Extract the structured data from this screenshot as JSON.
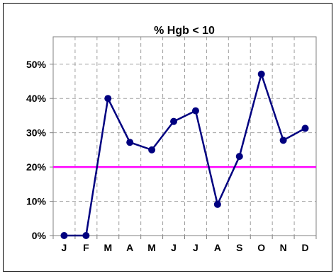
{
  "chart_data": {
    "type": "line",
    "title": "% Hgb < 10",
    "categories": [
      "J",
      "F",
      "M",
      "A",
      "M",
      "J",
      "J",
      "A",
      "S",
      "O",
      "N",
      "D"
    ],
    "series": [
      {
        "values": [
          0,
          0,
          40,
          27.2,
          25,
          33.3,
          36.4,
          9.1,
          23.1,
          47.1,
          27.8,
          31.3
        ]
      }
    ],
    "reference_line": {
      "value": 20
    },
    "ylim": [
      0,
      58
    ],
    "yticks": [
      0,
      10,
      20,
      30,
      40,
      50
    ],
    "ytick_labels": [
      "0%",
      "10%",
      "20%",
      "30%",
      "40%",
      "50%"
    ],
    "xlabel": "",
    "ylabel": "",
    "grid": true,
    "colors": {
      "line": "#000080",
      "marker": "#000080",
      "reference": "#ff00ff",
      "grid": "#a0a0a0"
    }
  }
}
